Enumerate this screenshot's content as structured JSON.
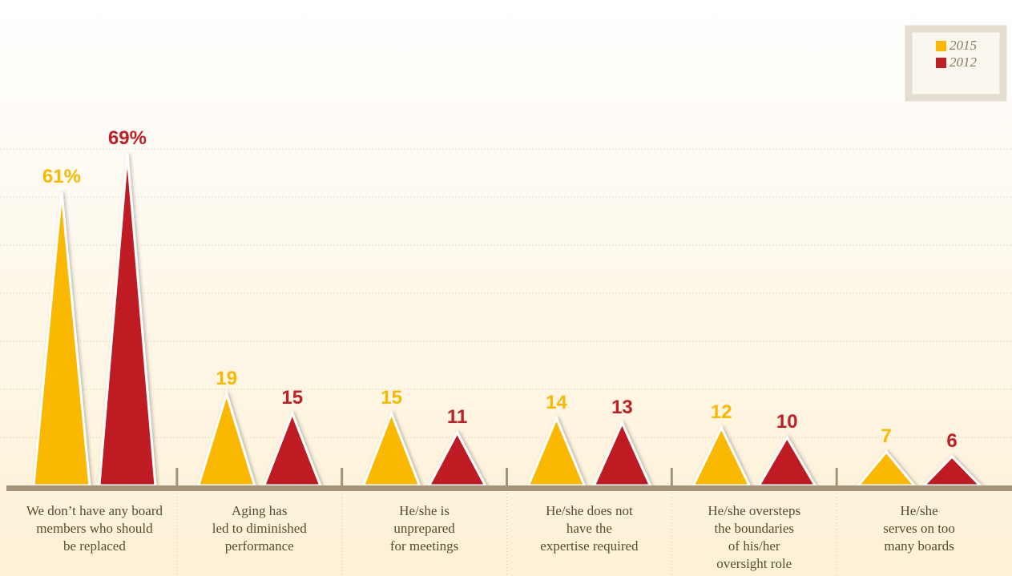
{
  "chart_data": {
    "type": "triangle-bar",
    "categories": [
      [
        "We don’t have any board",
        "members who should",
        "be replaced"
      ],
      [
        "Aging has",
        "led to diminished",
        "performance"
      ],
      [
        "He/she is",
        "unprepared",
        "for meetings"
      ],
      [
        "He/she does not",
        "have the",
        "expertise required"
      ],
      [
        "He/she oversteps",
        "the boundaries",
        "of his/her",
        "oversight role"
      ],
      [
        "He/she",
        "serves on too",
        "many boards"
      ]
    ],
    "series": [
      {
        "name": "2015",
        "color": "#fbb800",
        "values": [
          61,
          19,
          15,
          14,
          12,
          7
        ],
        "value_labels": [
          "61%",
          "19",
          "15",
          "14",
          "12",
          "7"
        ]
      },
      {
        "name": "2012",
        "color": "#be1e24",
        "values": [
          69,
          15,
          11,
          13,
          10,
          6
        ],
        "value_labels": [
          "69%",
          "15",
          "11",
          "13",
          "10",
          "6"
        ]
      }
    ],
    "ylim": [
      0,
      75
    ],
    "yticks": [
      0,
      10,
      20,
      30,
      40,
      50,
      60,
      70
    ],
    "grid": true,
    "legend": "top-right"
  }
}
